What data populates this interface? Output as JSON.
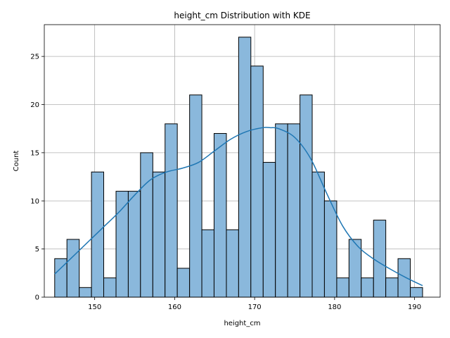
{
  "chart_data": {
    "type": "bar",
    "title": "height_cm Distribution with KDE",
    "xlabel": "height_cm",
    "ylabel": "Count",
    "xlim": [
      143.7,
      193.2
    ],
    "ylim": [
      0,
      28.3
    ],
    "xticks": [
      150,
      160,
      170,
      180,
      190
    ],
    "yticks": [
      0,
      5,
      10,
      15,
      20,
      25
    ],
    "grid": true,
    "bar_color": "#8ab8dc",
    "bar_edge_color": "#000000",
    "kde_color": "#1f77b4",
    "bins": {
      "edges": [
        145.0,
        146.53,
        148.07,
        149.6,
        151.13,
        152.67,
        154.2,
        155.73,
        157.27,
        158.8,
        160.33,
        161.87,
        163.4,
        164.93,
        166.47,
        168.0,
        169.53,
        171.07,
        172.6,
        174.13,
        175.67,
        177.2,
        178.73,
        180.27,
        181.8,
        183.33,
        184.87,
        186.4,
        187.93,
        189.47,
        191.0
      ],
      "counts": [
        4,
        6,
        1,
        13,
        2,
        11,
        11,
        15,
        13,
        18,
        3,
        21,
        7,
        17,
        7,
        27,
        24,
        14,
        18,
        18,
        21,
        13,
        10,
        2,
        6,
        2,
        8,
        2,
        4,
        1
      ]
    },
    "kde": {
      "x": [
        145,
        147,
        149,
        151,
        153,
        155,
        157,
        159,
        161,
        163,
        165,
        167,
        169,
        171,
        172,
        173,
        175,
        177,
        179,
        181,
        183,
        185,
        187,
        189,
        191
      ],
      "y": [
        2.4,
        4.0,
        5.6,
        7.2,
        8.8,
        10.6,
        12.2,
        13.0,
        13.4,
        14.0,
        15.2,
        16.4,
        17.2,
        17.6,
        17.6,
        17.5,
        16.6,
        14.4,
        10.8,
        7.4,
        5.2,
        3.9,
        2.9,
        2.0,
        1.2
      ]
    }
  }
}
